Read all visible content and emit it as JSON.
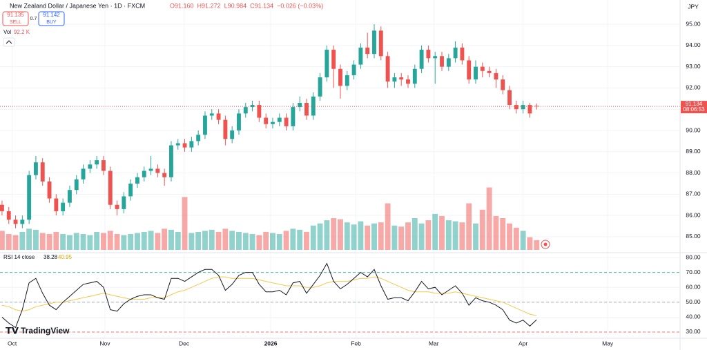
{
  "chart_data": {
    "type": "candlestick",
    "title": "New Zealand Dollar / Japanese Yen · 1D · FXCM",
    "legend_values": [
      "O91.160",
      "H91.272",
      "L90.984",
      "C91.134",
      "−0.026 (−0.03%)"
    ],
    "sell_price": "91.135",
    "sell_label": "SELL",
    "buy_price": "91.142",
    "buy_label": "BUY",
    "spread": "0.7",
    "currency": "JPY",
    "countdown": "08:06:53",
    "brand": "TradingView",
    "up_color": "#26a69a",
    "down_color": "#ef5350",
    "grid": true,
    "xlim": [
      -0.3,
      100.2
    ],
    "xticks": [
      {
        "value": 1.5,
        "label": "Oct"
      },
      {
        "value": 15.2,
        "label": "Nov"
      },
      {
        "value": 26.9,
        "label": "Dec"
      },
      {
        "value": 39.7,
        "label": "2026"
      },
      {
        "value": 52.3,
        "label": "Feb"
      },
      {
        "value": 63.8,
        "label": "Mar"
      },
      {
        "value": 77,
        "label": "Apr"
      },
      {
        "value": 89.5,
        "label": "May"
      }
    ],
    "ylim": [
      84.38,
      96.14
    ],
    "yticks": [
      {
        "value": 85,
        "label": "85.00"
      },
      {
        "value": 86,
        "label": "86.00"
      },
      {
        "value": 87,
        "label": "87.00"
      },
      {
        "value": 88,
        "label": "88.00"
      },
      {
        "value": 89,
        "label": "89.00"
      },
      {
        "value": 90,
        "label": "90.00"
      },
      {
        "value": 91,
        "label": "91.00"
      },
      {
        "value": 92,
        "label": "92.00"
      },
      {
        "value": 93,
        "label": "93.00"
      },
      {
        "value": 94,
        "label": "94.00"
      },
      {
        "value": 95,
        "label": "95.00"
      }
    ],
    "open": [
      86.5,
      86.2,
      85.8,
      85.6,
      85.8,
      87.9,
      88.5,
      87.6,
      86.8,
      86.2,
      86.6,
      87.2,
      87.7,
      88.2,
      88.4,
      88.6,
      88.1,
      86.5,
      86.3,
      86.9,
      87.5,
      87.8,
      88.1,
      88.2,
      88.0,
      87.8,
      89.3,
      89.4,
      89.2,
      89.5,
      89.8,
      90.7,
      90.8,
      90.5,
      89.6,
      90.0,
      90.8,
      91.1,
      91.2,
      90.6,
      90.3,
      90.4,
      90.6,
      90.2,
      91.1,
      91.3,
      90.7,
      91.6,
      92.5,
      93.8,
      92.9,
      92.1,
      92.6,
      93.1,
      93.9,
      93.6,
      94.7,
      93.5,
      92.3,
      92.5,
      92.4,
      92.2,
      92.9,
      93.8,
      93.4,
      93.5,
      93.0,
      93.4,
      93.9,
      93.3,
      92.4,
      93.0,
      92.8,
      92.7,
      92.4,
      91.9,
      91.2,
      91.0,
      91.2,
      91.16
    ],
    "high": [
      86.7,
      86.4,
      86.0,
      86.0,
      88.1,
      88.8,
      88.7,
      87.8,
      87.0,
      86.8,
      87.4,
      87.9,
      88.4,
      88.6,
      88.8,
      88.8,
      88.3,
      86.7,
      87.1,
      87.7,
      88.0,
      88.3,
      88.8,
      88.4,
      88.2,
      89.5,
      89.6,
      89.6,
      89.7,
      90.0,
      90.9,
      91.0,
      91.0,
      90.7,
      90.2,
      91.0,
      91.3,
      91.4,
      91.4,
      90.8,
      90.6,
      90.8,
      90.8,
      91.3,
      91.6,
      91.5,
      91.8,
      92.7,
      94.0,
      94.0,
      93.1,
      92.8,
      93.3,
      94.1,
      94.6,
      95.0,
      94.9,
      93.7,
      92.7,
      92.7,
      92.6,
      93.1,
      94.0,
      94.0,
      93.7,
      93.7,
      93.6,
      94.2,
      94.1,
      93.5,
      93.3,
      93.2,
      93.0,
      92.9,
      92.6,
      92.1,
      91.4,
      91.4,
      91.3,
      91.272
    ],
    "low": [
      86.0,
      85.6,
      85.4,
      85.4,
      85.6,
      87.7,
      87.4,
      86.6,
      86.0,
      86.0,
      86.4,
      87.0,
      87.5,
      88.0,
      88.2,
      87.9,
      86.3,
      86.0,
      86.1,
      86.7,
      87.3,
      87.6,
      87.9,
      87.8,
      87.4,
      87.6,
      89.1,
      89.0,
      89.0,
      89.3,
      89.6,
      90.5,
      90.3,
      89.3,
      89.4,
      89.8,
      90.6,
      90.9,
      90.4,
      90.1,
      90.1,
      90.2,
      90.0,
      90.0,
      90.9,
      90.5,
      90.5,
      91.4,
      92.3,
      92.0,
      91.5,
      91.9,
      92.4,
      92.9,
      93.4,
      93.4,
      93.3,
      92.0,
      92.0,
      92.1,
      92.0,
      92.0,
      92.7,
      93.2,
      92.2,
      92.8,
      92.8,
      93.2,
      93.1,
      92.2,
      92.2,
      92.5,
      92.5,
      92.0,
      91.7,
      91.0,
      90.8,
      90.8,
      90.6,
      90.984
    ],
    "close": [
      86.2,
      85.8,
      85.6,
      85.8,
      87.9,
      88.5,
      87.6,
      86.8,
      86.2,
      86.6,
      87.2,
      87.7,
      88.2,
      88.4,
      88.6,
      88.1,
      86.5,
      86.3,
      86.9,
      87.5,
      87.8,
      88.1,
      88.2,
      88.0,
      87.8,
      89.3,
      89.4,
      89.2,
      89.5,
      89.8,
      90.7,
      90.8,
      90.5,
      89.6,
      90.0,
      90.8,
      91.1,
      91.2,
      90.6,
      90.3,
      90.4,
      90.6,
      90.2,
      91.1,
      91.3,
      90.7,
      91.6,
      92.5,
      93.8,
      92.9,
      92.1,
      92.6,
      93.1,
      93.9,
      93.6,
      94.7,
      93.5,
      92.3,
      92.5,
      92.4,
      92.2,
      92.9,
      93.8,
      93.4,
      93.5,
      93.0,
      93.4,
      93.9,
      93.3,
      92.4,
      93.0,
      92.8,
      92.7,
      92.4,
      91.9,
      91.2,
      91.0,
      91.2,
      90.8,
      91.134
    ],
    "volume": {
      "name": "Vol",
      "last_label": "92.2 K",
      "vlim": [
        0,
        600
      ],
      "values": [
        180,
        150,
        140,
        170,
        200,
        190,
        160,
        150,
        170,
        150,
        140,
        160,
        150,
        140,
        170,
        160,
        180,
        150,
        140,
        150,
        160,
        170,
        180,
        160,
        200,
        190,
        170,
        500,
        160,
        170,
        180,
        190,
        170,
        200,
        180,
        170,
        160,
        150,
        140,
        170,
        160,
        150,
        180,
        200,
        190,
        170,
        230,
        250,
        280,
        300,
        290,
        260,
        240,
        270,
        230,
        250,
        260,
        440,
        230,
        220,
        260,
        300,
        250,
        280,
        340,
        320,
        280,
        270,
        260,
        440,
        250,
        380,
        590,
        320,
        300,
        250,
        210,
        180,
        120,
        92.2
      ]
    },
    "rsi": {
      "name": "RSI 14 close",
      "color": "#131722",
      "ma_color": "#f2c94c",
      "ylim": [
        25.83,
        82.78
      ],
      "yticks": [
        {
          "value": 30,
          "label": "30.00"
        },
        {
          "value": 40,
          "label": "40.00"
        },
        {
          "value": 50,
          "label": "50.00"
        },
        {
          "value": 60,
          "label": "60.00"
        },
        {
          "value": 70,
          "label": "70.00"
        },
        {
          "value": 80,
          "label": "80.00"
        }
      ],
      "bands": [
        70,
        50,
        30
      ],
      "values": [
        40,
        36,
        33,
        45,
        63,
        66,
        56,
        48,
        45,
        50,
        54,
        58,
        62,
        63,
        64,
        60,
        45,
        44,
        49,
        52,
        54,
        55,
        55,
        53,
        52,
        66,
        66,
        64,
        67,
        70,
        72,
        72,
        68,
        58,
        62,
        68,
        70,
        70,
        62,
        57,
        57,
        58,
        55,
        63,
        64,
        56,
        62,
        68,
        76,
        64,
        59,
        62,
        66,
        70,
        67,
        72,
        61,
        52,
        53,
        53,
        51,
        57,
        64,
        59,
        60,
        55,
        58,
        61,
        56,
        48,
        53,
        51,
        50,
        48,
        45,
        38,
        36,
        38,
        34,
        38.28
      ],
      "ma": [
        48,
        47,
        45,
        44,
        45,
        47,
        48,
        49,
        50,
        50,
        51,
        52,
        53,
        54,
        55,
        56,
        55,
        54,
        53,
        52,
        52,
        52,
        53,
        53,
        53,
        55,
        57,
        58,
        60,
        62,
        64,
        66,
        67,
        67,
        66,
        66,
        66,
        66,
        65,
        64,
        63,
        62,
        61,
        61,
        61,
        60,
        60,
        61,
        63,
        64,
        64,
        64,
        65,
        66,
        66,
        67,
        66,
        64,
        62,
        60,
        58,
        57,
        57,
        57,
        56,
        56,
        56,
        57,
        56,
        55,
        54,
        53,
        52,
        51,
        50,
        48,
        46,
        44,
        42,
        40.95
      ]
    }
  }
}
